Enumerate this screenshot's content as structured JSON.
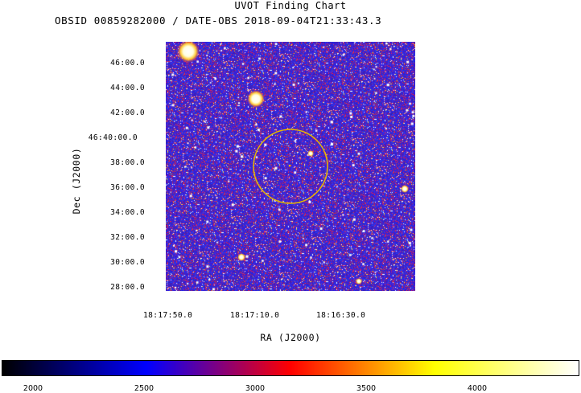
{
  "title": "UVOT Finding Chart",
  "subtitle": "OBSID 00859282000 / DATE-OBS 2018-09-04T21:33:43.3",
  "axes": {
    "xlabel": "RA (J2000)",
    "ylabel": "Dec (J2000)",
    "ra_ticks": [
      "18:17:50.0",
      "18:17:10.0",
      "18:16:30.0"
    ],
    "dec_ticks": [
      "46:00.0",
      "44:00.0",
      "42:00.0",
      "46:40:00.0",
      "38:00.0",
      "36:00.0",
      "34:00.0",
      "32:00.0",
      "30:00.0",
      "28:00.0"
    ]
  },
  "colorbar": {
    "ticks": [
      "2000",
      "2500",
      "3000",
      "3500",
      "4000"
    ],
    "colors": [
      "#000000",
      "#0000ff",
      "#ff0000",
      "#ffff00",
      "#ffffff"
    ]
  },
  "marker": {
    "color": "#e6b800"
  }
}
